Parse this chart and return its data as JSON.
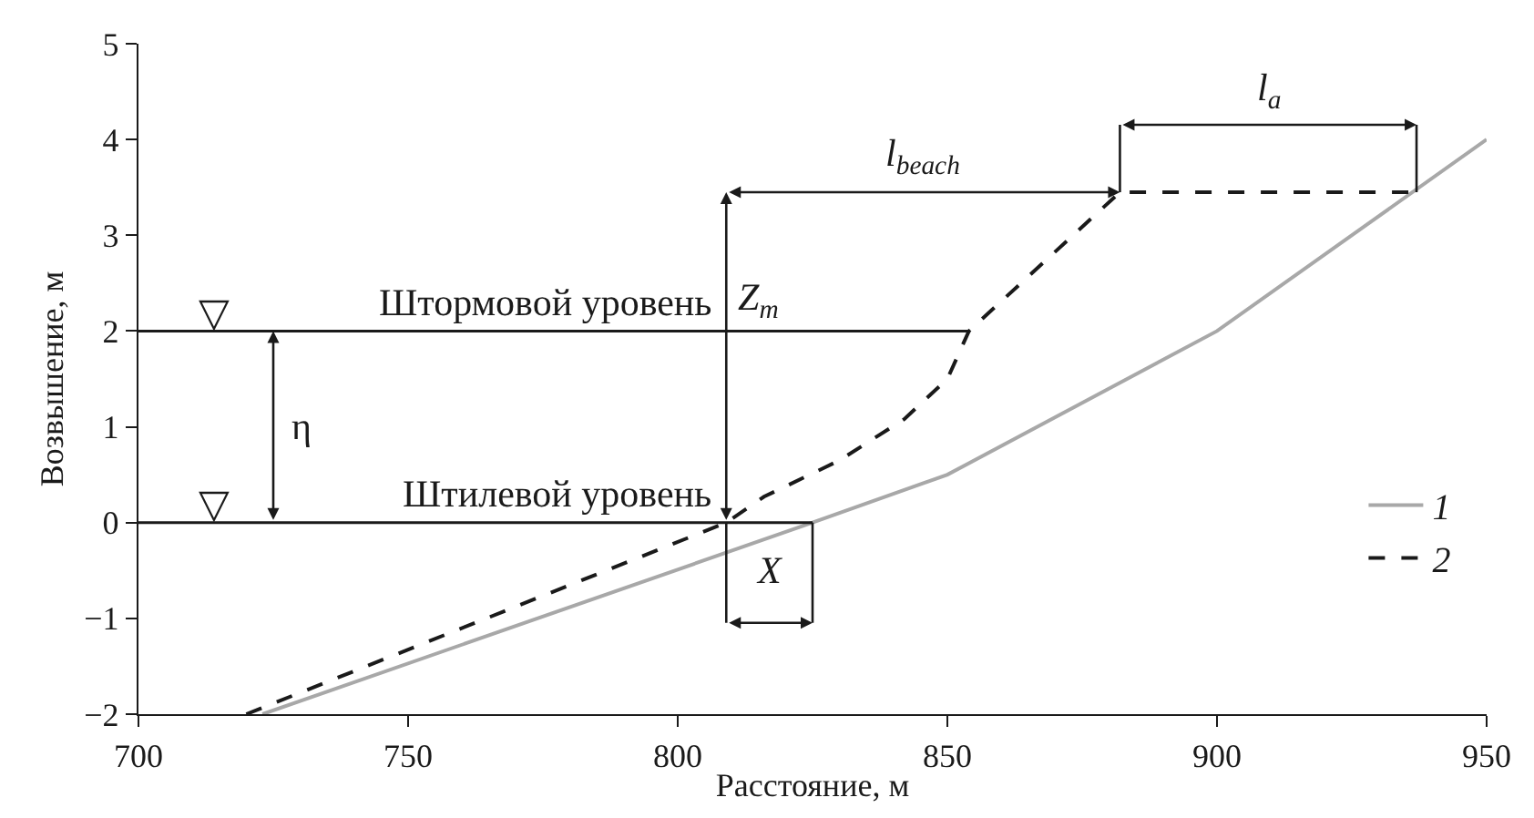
{
  "chart_data": {
    "type": "line",
    "xlabel": "Расстояние, м",
    "ylabel": "Возвышение, м",
    "xlim": [
      700,
      950
    ],
    "xticks": [
      700,
      750,
      800,
      850,
      900,
      950
    ],
    "ylim": [
      -2,
      5
    ],
    "yticks": [
      {
        "value": -2,
        "label": "−2"
      },
      {
        "value": -1,
        "label": "−1"
      },
      0,
      1,
      2,
      3,
      4,
      5
    ],
    "grid": false,
    "legend": "bottom right",
    "series": [
      {
        "name": "1",
        "color": "#a8a8a8",
        "line_style": "solid",
        "x": [
          723,
          825,
          850,
          900,
          950
        ],
        "values": [
          -2,
          0,
          0.5,
          2,
          4
        ]
      },
      {
        "name": "2",
        "color": "#1a1a1a",
        "line_style": "dashed",
        "x": [
          720,
          809,
          816,
          830,
          842,
          850,
          854,
          882,
          937
        ],
        "values": [
          -2,
          0,
          0.27,
          0.65,
          1.08,
          1.5,
          2,
          3.45,
          3.45
        ]
      },
      {
        "color": "#1a1a1a",
        "line_style": "solid",
        "x": [
          700,
          854
        ],
        "values": [
          2,
          2
        ]
      },
      {
        "color": "#1a1a1a",
        "line_style": "solid",
        "x": [
          700,
          825
        ],
        "values": [
          0,
          0
        ]
      }
    ],
    "annotations": [
      "Штормовой уровень",
      "Штилевой уровень",
      "η",
      "Z$_{m}$",
      "l$_{beach}$",
      "l$_{a}$",
      "X",
      {
        "text": "▽",
        "x": 714,
        "y": 2
      },
      {
        "text": "▽",
        "x": 714,
        "y": 0
      }
    ]
  }
}
